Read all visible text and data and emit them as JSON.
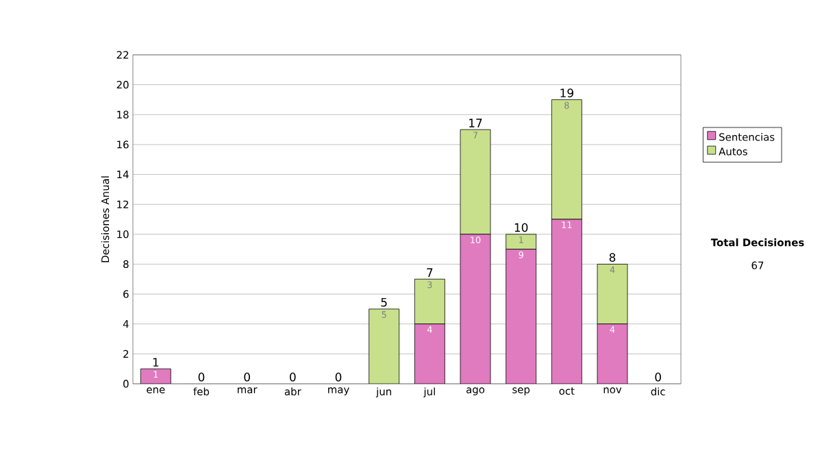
{
  "chart_data": {
    "type": "bar",
    "stacked": true,
    "ylabel": "Decisiones Anual",
    "categories": [
      "ene",
      "feb",
      "mar",
      "abr",
      "may",
      "jun",
      "jul",
      "ago",
      "sep",
      "oct",
      "nov",
      "dic"
    ],
    "series": [
      {
        "name": "Sentencias",
        "color": "#e07bc0",
        "values": [
          1,
          0,
          0,
          0,
          0,
          0,
          4,
          10,
          9,
          11,
          4,
          0
        ],
        "value_labels": [
          "1",
          null,
          null,
          null,
          null,
          null,
          "4",
          "10",
          "9",
          "11",
          "4",
          null
        ]
      },
      {
        "name": "Autos",
        "color": "#c8e08c",
        "values": [
          0,
          0,
          0,
          0,
          0,
          5,
          3,
          7,
          1,
          8,
          4,
          0
        ],
        "value_labels": [
          null,
          null,
          null,
          null,
          null,
          "5",
          "3",
          "7",
          "1",
          "8",
          "4",
          null
        ]
      }
    ],
    "totals": [
      "1",
      "0",
      "0",
      "0",
      "0",
      "5",
      "7",
      "17",
      "10",
      "19",
      "8",
      "0"
    ],
    "ylim": [
      0,
      22
    ],
    "yticks": [
      0,
      2,
      4,
      6,
      8,
      10,
      12,
      14,
      16,
      18,
      20,
      22
    ],
    "grid": "y",
    "legend": "right",
    "annotations": [
      "Total Decisiones",
      "67"
    ]
  }
}
